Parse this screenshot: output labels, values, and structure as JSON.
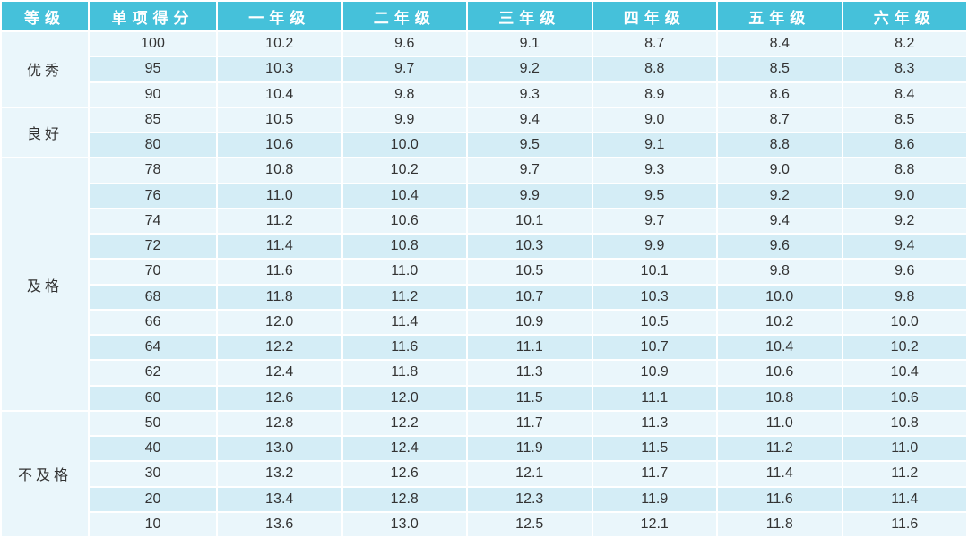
{
  "chart_data": {
    "type": "table",
    "columns": [
      "等级",
      "单项得分",
      "一年级",
      "二年级",
      "三年级",
      "四年级",
      "五年级",
      "六年级"
    ],
    "groups": [
      {
        "grade": "优秀",
        "rows": [
          [
            "100",
            "10.2",
            "9.6",
            "9.1",
            "8.7",
            "8.4",
            "8.2"
          ],
          [
            "95",
            "10.3",
            "9.7",
            "9.2",
            "8.8",
            "8.5",
            "8.3"
          ],
          [
            "90",
            "10.4",
            "9.8",
            "9.3",
            "8.9",
            "8.6",
            "8.4"
          ]
        ]
      },
      {
        "grade": "良好",
        "rows": [
          [
            "85",
            "10.5",
            "9.9",
            "9.4",
            "9.0",
            "8.7",
            "8.5"
          ],
          [
            "80",
            "10.6",
            "10.0",
            "9.5",
            "9.1",
            "8.8",
            "8.6"
          ]
        ]
      },
      {
        "grade": "及格",
        "rows": [
          [
            "78",
            "10.8",
            "10.2",
            "9.7",
            "9.3",
            "9.0",
            "8.8"
          ],
          [
            "76",
            "11.0",
            "10.4",
            "9.9",
            "9.5",
            "9.2",
            "9.0"
          ],
          [
            "74",
            "11.2",
            "10.6",
            "10.1",
            "9.7",
            "9.4",
            "9.2"
          ],
          [
            "72",
            "11.4",
            "10.8",
            "10.3",
            "9.9",
            "9.6",
            "9.4"
          ],
          [
            "70",
            "11.6",
            "11.0",
            "10.5",
            "10.1",
            "9.8",
            "9.6"
          ],
          [
            "68",
            "11.8",
            "11.2",
            "10.7",
            "10.3",
            "10.0",
            "9.8"
          ],
          [
            "66",
            "12.0",
            "11.4",
            "10.9",
            "10.5",
            "10.2",
            "10.0"
          ],
          [
            "64",
            "12.2",
            "11.6",
            "11.1",
            "10.7",
            "10.4",
            "10.2"
          ],
          [
            "62",
            "12.4",
            "11.8",
            "11.3",
            "10.9",
            "10.6",
            "10.4"
          ],
          [
            "60",
            "12.6",
            "12.0",
            "11.5",
            "11.1",
            "10.8",
            "10.6"
          ]
        ]
      },
      {
        "grade": "不及格",
        "rows": [
          [
            "50",
            "12.8",
            "12.2",
            "11.7",
            "11.3",
            "11.0",
            "10.8"
          ],
          [
            "40",
            "13.0",
            "12.4",
            "11.9",
            "11.5",
            "11.2",
            "11.0"
          ],
          [
            "30",
            "13.2",
            "12.6",
            "12.1",
            "11.7",
            "11.4",
            "11.2"
          ],
          [
            "20",
            "13.4",
            "12.8",
            "12.3",
            "11.9",
            "11.6",
            "11.4"
          ],
          [
            "10",
            "13.6",
            "13.0",
            "12.5",
            "12.1",
            "11.8",
            "11.6"
          ]
        ]
      }
    ],
    "colors": {
      "header_bg": "#45C1DA",
      "row_light": "#EAF6FB",
      "row_dark": "#D4EDF6",
      "level_bg": "#DFF1F8",
      "text_dark": "#333333",
      "grid": "#FFFFFF"
    },
    "layout": {
      "striping": "alternating per group, starting light",
      "legend_position": "none",
      "grid": "white separators"
    }
  }
}
